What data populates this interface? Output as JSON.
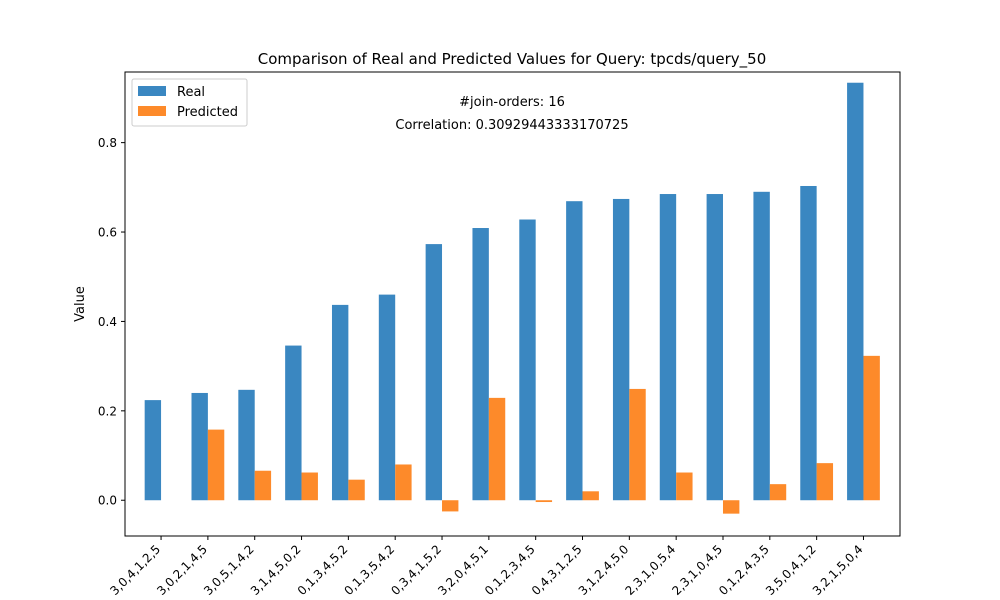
{
  "chart_data": {
    "type": "bar",
    "title": "Comparison of Real and Predicted Values for Query: tpcds/query_50",
    "xlabel": "",
    "ylabel": "Value",
    "annotations": [
      "#join-orders: 16",
      "Correlation: 0.30929443333170725"
    ],
    "categories": [
      "3,0,4,1,2,5",
      "3,0,2,1,4,5",
      "3,0,5,1,4,2",
      "3,1,4,5,0,2",
      "0,1,3,4,5,2",
      "0,1,3,5,4,2",
      "0,3,4,1,5,2",
      "3,2,0,4,5,1",
      "0,1,2,3,4,5",
      "0,4,3,1,2,5",
      "3,1,2,4,5,0",
      "2,3,1,0,5,4",
      "2,3,1,0,4,5",
      "0,1,2,4,3,5",
      "3,5,0,4,1,2",
      "3,2,1,5,0,4"
    ],
    "series": [
      {
        "name": "Real",
        "color": "#3a87c1",
        "values": [
          0.224,
          0.24,
          0.247,
          0.346,
          0.437,
          0.46,
          0.573,
          0.609,
          0.628,
          0.669,
          0.674,
          0.685,
          0.685,
          0.69,
          0.703,
          0.934
        ]
      },
      {
        "name": "Predicted",
        "color": "#fd8a2a",
        "values": [
          0.0,
          0.158,
          0.066,
          0.062,
          0.046,
          0.08,
          -0.025,
          0.229,
          -0.004,
          0.02,
          0.249,
          0.062,
          -0.03,
          0.036,
          0.083,
          0.323
        ]
      }
    ],
    "ylim": [
      -0.08,
      0.958
    ],
    "yticks": [
      0.0,
      0.2,
      0.4,
      0.6,
      0.8
    ],
    "ytick_labels": [
      "0.0",
      "0.2",
      "0.4",
      "0.6",
      "0.8"
    ],
    "legend_position": "top-left",
    "grid": false
  }
}
